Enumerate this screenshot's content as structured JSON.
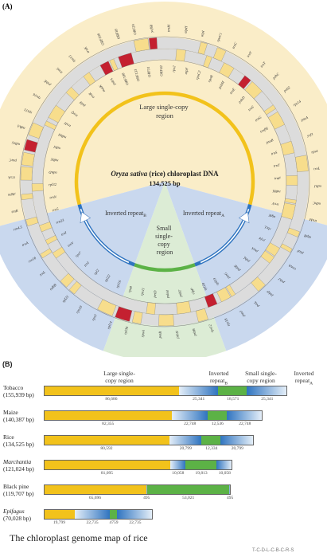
{
  "panel_a": {
    "label": "(A)",
    "center_title_italic": "Oryza sativa",
    "center_title_rest": " (rice) chloroplast DNA",
    "center_size": "134,525 bp",
    "lsc_label_1": "Large single-copy",
    "lsc_label_2": "region",
    "irb_label": "Inverted repeat",
    "irb_sub": "B",
    "ira_label": "Inverted repeat",
    "ira_sub": "A",
    "ssc_label_1": "Small",
    "ssc_label_2": "single-",
    "ssc_label_3": "copy",
    "ssc_label_4": "region",
    "gene_labels": [
      "trnM",
      "rps2",
      "atpH",
      "atpF",
      "atpI",
      "rpoC2",
      "rpoC1",
      "rpoB",
      "trnC",
      "psbM",
      "trnY",
      "trnE",
      "trnT",
      "psbD",
      "psbC",
      "trnS",
      "psbZ",
      "trnG",
      "rps14",
      "trnfM",
      "psaA",
      "psaB",
      "ycf3",
      "trnS",
      "rps4",
      "trnT",
      "trnL",
      "trnF",
      "ndhJ",
      "ndhK",
      "ndhC",
      "trnV",
      "trnM",
      "atpE",
      "atpB",
      "rbcL",
      "psaI",
      "ycf4",
      "cemA",
      "petA",
      "psbJ",
      "psbL",
      "psbF",
      "psbE",
      "petL",
      "petG",
      "psaJ",
      "rpl33",
      "rps18",
      "rpl20",
      "rps12",
      "clpP",
      "psbB",
      "psbT",
      "psbN",
      "psbH",
      "petB",
      "petD",
      "rpoA",
      "rps11",
      "rpl36",
      "rps8",
      "rpl14",
      "rpl16",
      "rps3",
      "rpl22",
      "rps19",
      "rpl2",
      "rpl23",
      "trnI",
      "ndhB",
      "rps7",
      "trnL",
      "trnV",
      "rrn16",
      "trnI",
      "trnA",
      "rrn23",
      "rrn4.5",
      "rrn5",
      "trnR",
      "trnN",
      "ndhF",
      "rpl32",
      "ccsA",
      "ndhD",
      "psaC",
      "ndhE",
      "ndhG",
      "ndhI",
      "ndhA",
      "ndhH",
      "rps15",
      "trnH",
      "rps16",
      "trnQ",
      "psbK",
      "psbI",
      "trnG",
      "trnR",
      "rps15",
      "matK",
      "trnK",
      "psbA",
      "ORF106",
      "ORF100",
      "ORF85",
      "ORF133",
      "ORF29",
      "ORF31",
      "ycf68",
      "ORF42"
    ]
  },
  "panel_b": {
    "label": "(B)",
    "headers": {
      "lsc": [
        "Large single-",
        "copy region"
      ],
      "irb": [
        "Inverted",
        "repeat"
      ],
      "irb_sub": "B",
      "ssc": [
        "Small single-",
        "copy region"
      ],
      "ira": [
        "Inverted",
        "repeat"
      ],
      "ira_sub": "A"
    },
    "rows": [
      {
        "name": "Tobacco",
        "italic": false,
        "size": "(155,939 bp)",
        "segments": [
          86686,
          25341,
          18571,
          25341
        ],
        "labels": [
          "86,686",
          "25,341",
          "18,571",
          "25,341"
        ]
      },
      {
        "name": "Maize",
        "italic": false,
        "size": "(140,387 bp)",
        "segments": [
          82355,
          22748,
          12536,
          22748
        ],
        "labels": [
          "82,355",
          "22,748",
          "12,536",
          "22,748"
        ]
      },
      {
        "name": "Rice",
        "italic": false,
        "size": "(134,525 bp)",
        "segments": [
          80592,
          20799,
          12334,
          20799
        ],
        "labels": [
          "80,592",
          "20,799",
          "12,334",
          "20,799"
        ]
      },
      {
        "name": "Marchantia",
        "italic": true,
        "size": "(121,024 bp)",
        "segments": [
          81095,
          10058,
          19813,
          10058
        ],
        "labels": [
          "81,095",
          "10,058",
          "19,813",
          "10,058"
        ]
      },
      {
        "name": "Black pine",
        "italic": false,
        "size": "(119,707 bp)",
        "segments": [
          65696,
          495,
          53021,
          495
        ],
        "labels": [
          "65,696",
          "495",
          "53,021",
          "495"
        ]
      },
      {
        "name": "Epifagus",
        "italic": true,
        "size": "(70,028 bp)",
        "segments": [
          19799,
          22735,
          4759,
          22735
        ],
        "labels": [
          "19,799",
          "22,735",
          "4759",
          "22,735"
        ]
      }
    ]
  },
  "caption": "The chloroplast genome map of rice",
  "footer": "T-C-D-L-C-B-C-R-S",
  "colors": {
    "lsc": "#f2c21b",
    "ir": "#2f74c0",
    "ir_light": "#e4eef8",
    "ssc": "#5cb246",
    "lsc_bg": "#faedc8",
    "ir_bg": "#c9d8ee",
    "ssc_bg": "#dcecd5",
    "gene": "#f7dd8c",
    "gene_red": "#c42030",
    "ring": "#dcdcdc"
  }
}
